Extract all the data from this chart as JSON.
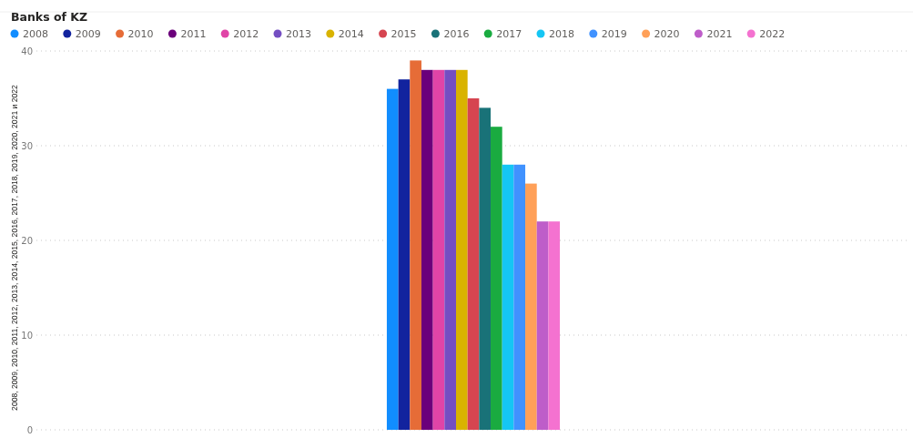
{
  "chart_data": {
    "type": "bar",
    "title": "Banks of KZ",
    "ylabel": "2008, 2009, 2010, 2011, 2012, 2013, 2014, 2015, 2016, 2017, 2018, 2019, 2020, 2021 и 2022",
    "categories": [
      null
    ],
    "series": [
      {
        "name": "2008",
        "color": "#118dff",
        "values": [
          36
        ]
      },
      {
        "name": "2009",
        "color": "#12239e",
        "values": [
          37
        ]
      },
      {
        "name": "2010",
        "color": "#e66c37",
        "values": [
          39
        ]
      },
      {
        "name": "2011",
        "color": "#6b007b",
        "values": [
          38
        ]
      },
      {
        "name": "2012",
        "color": "#e044a7",
        "values": [
          38
        ]
      },
      {
        "name": "2013",
        "color": "#744ec2",
        "values": [
          38
        ]
      },
      {
        "name": "2014",
        "color": "#d9b300",
        "values": [
          38
        ]
      },
      {
        "name": "2015",
        "color": "#d64550",
        "values": [
          35
        ]
      },
      {
        "name": "2016",
        "color": "#197278",
        "values": [
          34
        ]
      },
      {
        "name": "2017",
        "color": "#1aab40",
        "values": [
          32
        ]
      },
      {
        "name": "2018",
        "color": "#15c6f4",
        "values": [
          28
        ]
      },
      {
        "name": "2019",
        "color": "#4092ff",
        "values": [
          28
        ]
      },
      {
        "name": "2020",
        "color": "#ffa058",
        "values": [
          26
        ]
      },
      {
        "name": "2021",
        "color": "#be5dc9",
        "values": [
          22
        ]
      },
      {
        "name": "2022",
        "color": "#f472d0",
        "values": [
          22
        ]
      }
    ],
    "ylim": [
      0,
      40
    ],
    "yticks": [
      0,
      10,
      20,
      30,
      40
    ],
    "grid": "y",
    "legend": "top left"
  }
}
